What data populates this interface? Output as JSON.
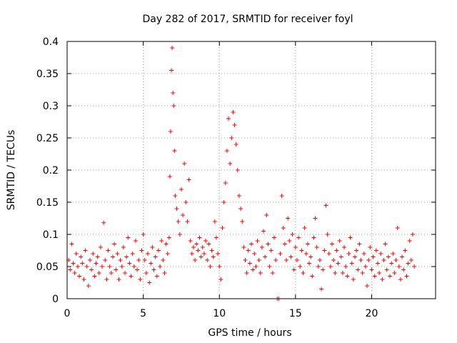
{
  "chart_data": {
    "type": "scatter",
    "title": "Day 282 of 2017, SRMTID for receiver foyl",
    "xlabel": "GPS time / hours",
    "ylabel": "SRMTID / TECUs",
    "xlim": [
      0,
      24.2
    ],
    "ylim": [
      0,
      0.4
    ],
    "xticks": [
      0,
      5,
      10,
      15,
      20
    ],
    "xtick_labels": [
      "0",
      "5",
      "10",
      "15",
      "20"
    ],
    "yticks": [
      0,
      0.05,
      0.1,
      0.15,
      0.2,
      0.25,
      0.3,
      0.35,
      0.4
    ],
    "ytick_labels": [
      "0",
      "0.05",
      "0.1",
      "0.15",
      "0.2",
      "0.25",
      "0.3",
      "0.35",
      "0.4"
    ],
    "grid": true,
    "marker": "plus",
    "color": "#ff0000",
    "series": [
      {
        "points": [
          [
            0.1,
            0.06
          ],
          [
            0.2,
            0.045
          ],
          [
            0.3,
            0.085
          ],
          [
            0.4,
            0.055
          ],
          [
            0.5,
            0.04
          ],
          [
            0.6,
            0.07
          ],
          [
            0.7,
            0.05
          ],
          [
            0.8,
            0.035
          ],
          [
            0.9,
            0.065
          ],
          [
            1.0,
            0.055
          ],
          [
            1.1,
            0.03
          ],
          [
            1.2,
            0.075
          ],
          [
            1.3,
            0.05
          ],
          [
            1.4,
            0.02
          ],
          [
            1.5,
            0.06
          ],
          [
            1.6,
            0.045
          ],
          [
            1.7,
            0.07
          ],
          [
            1.8,
            0.035
          ],
          [
            1.9,
            0.055
          ],
          [
            2.0,
            0.065
          ],
          [
            2.1,
            0.04
          ],
          [
            2.2,
            0.08
          ],
          [
            2.3,
            0.05
          ],
          [
            2.4,
            0.118
          ],
          [
            2.5,
            0.06
          ],
          [
            2.6,
            0.03
          ],
          [
            2.7,
            0.075
          ],
          [
            2.8,
            0.05
          ],
          [
            2.9,
            0.04
          ],
          [
            3.0,
            0.065
          ],
          [
            3.1,
            0.085
          ],
          [
            3.2,
            0.045
          ],
          [
            3.3,
            0.07
          ],
          [
            3.4,
            0.03
          ],
          [
            3.5,
            0.06
          ],
          [
            3.6,
            0.05
          ],
          [
            3.7,
            0.08
          ],
          [
            3.8,
            0.04
          ],
          [
            3.9,
            0.065
          ],
          [
            4.0,
            0.095
          ],
          [
            4.1,
            0.055
          ],
          [
            4.2,
            0.035
          ],
          [
            4.3,
            0.07
          ],
          [
            4.4,
            0.05
          ],
          [
            4.5,
            0.09
          ],
          [
            4.6,
            0.045
          ],
          [
            4.7,
            0.06
          ],
          [
            4.8,
            0.03
          ],
          [
            4.9,
            0.075
          ],
          [
            5.0,
            0.1
          ],
          [
            5.1,
            0.06
          ],
          [
            5.2,
            0.04
          ],
          [
            5.3,
            0.07
          ],
          [
            5.4,
            0.025
          ],
          [
            5.5,
            0.055
          ],
          [
            5.6,
            0.08
          ],
          [
            5.7,
            0.045
          ],
          [
            5.8,
            0.065
          ],
          [
            5.9,
            0.035
          ],
          [
            6.0,
            0.075
          ],
          [
            6.1,
            0.05
          ],
          [
            6.2,
            0.09
          ],
          [
            6.3,
            0.06
          ],
          [
            6.4,
            0.04
          ],
          [
            6.5,
            0.085
          ],
          [
            6.6,
            0.07
          ],
          [
            6.7,
            0.095
          ],
          [
            6.75,
            0.19
          ],
          [
            6.8,
            0.26
          ],
          [
            6.85,
            0.355
          ],
          [
            6.9,
            0.39
          ],
          [
            6.95,
            0.32
          ],
          [
            7.0,
            0.3
          ],
          [
            7.05,
            0.23
          ],
          [
            7.1,
            0.16
          ],
          [
            7.2,
            0.14
          ],
          [
            7.3,
            0.12
          ],
          [
            7.4,
            0.1
          ],
          [
            7.5,
            0.17
          ],
          [
            7.6,
            0.13
          ],
          [
            7.7,
            0.21
          ],
          [
            7.8,
            0.15
          ],
          [
            7.9,
            0.12
          ],
          [
            8.0,
            0.185
          ],
          [
            8.1,
            0.09
          ],
          [
            8.2,
            0.07
          ],
          [
            8.3,
            0.08
          ],
          [
            8.4,
            0.06
          ],
          [
            8.5,
            0.085
          ],
          [
            8.6,
            0.075
          ],
          [
            8.7,
            0.095
          ],
          [
            8.8,
            0.065
          ],
          [
            8.9,
            0.08
          ],
          [
            9.0,
            0.07
          ],
          [
            9.1,
            0.09
          ],
          [
            9.2,
            0.06
          ],
          [
            9.3,
            0.085
          ],
          [
            9.4,
            0.05
          ],
          [
            9.5,
            0.075
          ],
          [
            9.6,
            0.065
          ],
          [
            9.7,
            0.12
          ],
          [
            9.8,
            0.095
          ],
          [
            9.9,
            0.07
          ],
          [
            10.0,
            0.05
          ],
          [
            10.1,
            0.03
          ],
          [
            10.2,
            0.11
          ],
          [
            10.3,
            0.15
          ],
          [
            10.4,
            0.18
          ],
          [
            10.5,
            0.23
          ],
          [
            10.6,
            0.28
          ],
          [
            10.7,
            0.21
          ],
          [
            10.8,
            0.25
          ],
          [
            10.9,
            0.29
          ],
          [
            11.0,
            0.27
          ],
          [
            11.1,
            0.24
          ],
          [
            11.2,
            0.2
          ],
          [
            11.3,
            0.16
          ],
          [
            11.4,
            0.14
          ],
          [
            11.5,
            0.12
          ],
          [
            11.6,
            0.08
          ],
          [
            11.7,
            0.06
          ],
          [
            11.8,
            0.04
          ],
          [
            11.9,
            0.075
          ],
          [
            12.0,
            0.055
          ],
          [
            12.1,
            0.085
          ],
          [
            12.2,
            0.045
          ],
          [
            12.3,
            0.07
          ],
          [
            12.4,
            0.05
          ],
          [
            12.5,
            0.09
          ],
          [
            12.6,
            0.06
          ],
          [
            12.7,
            0.04
          ],
          [
            12.8,
            0.08
          ],
          [
            12.9,
            0.105
          ],
          [
            13.0,
            0.065
          ],
          [
            13.1,
            0.13
          ],
          [
            13.2,
            0.085
          ],
          [
            13.3,
            0.05
          ],
          [
            13.4,
            0.075
          ],
          [
            13.5,
            0.04
          ],
          [
            13.6,
            0.095
          ],
          [
            13.7,
            0.06
          ],
          [
            13.8,
            0.0
          ],
          [
            13.9,
            0.0
          ],
          [
            14.0,
            0.07
          ],
          [
            14.1,
            0.16
          ],
          [
            14.2,
            0.11
          ],
          [
            14.3,
            0.085
          ],
          [
            14.4,
            0.06
          ],
          [
            14.5,
            0.125
          ],
          [
            14.6,
            0.09
          ],
          [
            14.7,
            0.065
          ],
          [
            14.8,
            0.1
          ],
          [
            14.9,
            0.045
          ],
          [
            15.0,
            0.08
          ],
          [
            15.1,
            0.06
          ],
          [
            15.2,
            0.095
          ],
          [
            15.3,
            0.05
          ],
          [
            15.4,
            0.075
          ],
          [
            15.5,
            0.04
          ],
          [
            15.6,
            0.11
          ],
          [
            15.7,
            0.07
          ],
          [
            15.8,
            0.085
          ],
          [
            15.9,
            0.055
          ],
          [
            16.0,
            0.065
          ],
          [
            16.1,
            0.035
          ],
          [
            16.2,
            0.095
          ],
          [
            16.3,
            0.125
          ],
          [
            16.4,
            0.08
          ],
          [
            16.5,
            0.05
          ],
          [
            16.6,
            0.06
          ],
          [
            16.7,
            0.015
          ],
          [
            16.8,
            0.045
          ],
          [
            16.9,
            0.075
          ],
          [
            17.0,
            0.145
          ],
          [
            17.1,
            0.1
          ],
          [
            17.2,
            0.07
          ],
          [
            17.3,
            0.05
          ],
          [
            17.4,
            0.085
          ],
          [
            17.5,
            0.06
          ],
          [
            17.6,
            0.04
          ],
          [
            17.7,
            0.075
          ],
          [
            17.8,
            0.055
          ],
          [
            17.9,
            0.09
          ],
          [
            18.0,
            0.065
          ],
          [
            18.1,
            0.04
          ],
          [
            18.2,
            0.08
          ],
          [
            18.3,
            0.05
          ],
          [
            18.4,
            0.035
          ],
          [
            18.5,
            0.07
          ],
          [
            18.6,
            0.095
          ],
          [
            18.7,
            0.055
          ],
          [
            18.8,
            0.03
          ],
          [
            18.9,
            0.065
          ],
          [
            19.0,
            0.075
          ],
          [
            19.1,
            0.045
          ],
          [
            19.2,
            0.085
          ],
          [
            19.3,
            0.06
          ],
          [
            19.4,
            0.04
          ],
          [
            19.5,
            0.07
          ],
          [
            19.6,
            0.05
          ],
          [
            19.7,
            0.02
          ],
          [
            19.8,
            0.06
          ],
          [
            19.9,
            0.08
          ],
          [
            20.0,
            0.045
          ],
          [
            20.1,
            0.065
          ],
          [
            20.2,
            0.035
          ],
          [
            20.3,
            0.075
          ],
          [
            20.4,
            0.055
          ],
          [
            20.5,
            0.04
          ],
          [
            20.6,
            0.07
          ],
          [
            20.7,
            0.03
          ],
          [
            20.8,
            0.06
          ],
          [
            20.9,
            0.085
          ],
          [
            21.0,
            0.045
          ],
          [
            21.1,
            0.065
          ],
          [
            21.2,
            0.035
          ],
          [
            21.3,
            0.055
          ],
          [
            21.4,
            0.07
          ],
          [
            21.5,
            0.04
          ],
          [
            21.6,
            0.06
          ],
          [
            21.7,
            0.11
          ],
          [
            21.8,
            0.05
          ],
          [
            21.9,
            0.03
          ],
          [
            22.0,
            0.065
          ],
          [
            22.1,
            0.045
          ],
          [
            22.2,
            0.075
          ],
          [
            22.3,
            0.035
          ],
          [
            22.4,
            0.055
          ],
          [
            22.5,
            0.09
          ],
          [
            22.6,
            0.06
          ],
          [
            22.7,
            0.1
          ],
          [
            22.8,
            0.05
          ]
        ]
      }
    ]
  }
}
